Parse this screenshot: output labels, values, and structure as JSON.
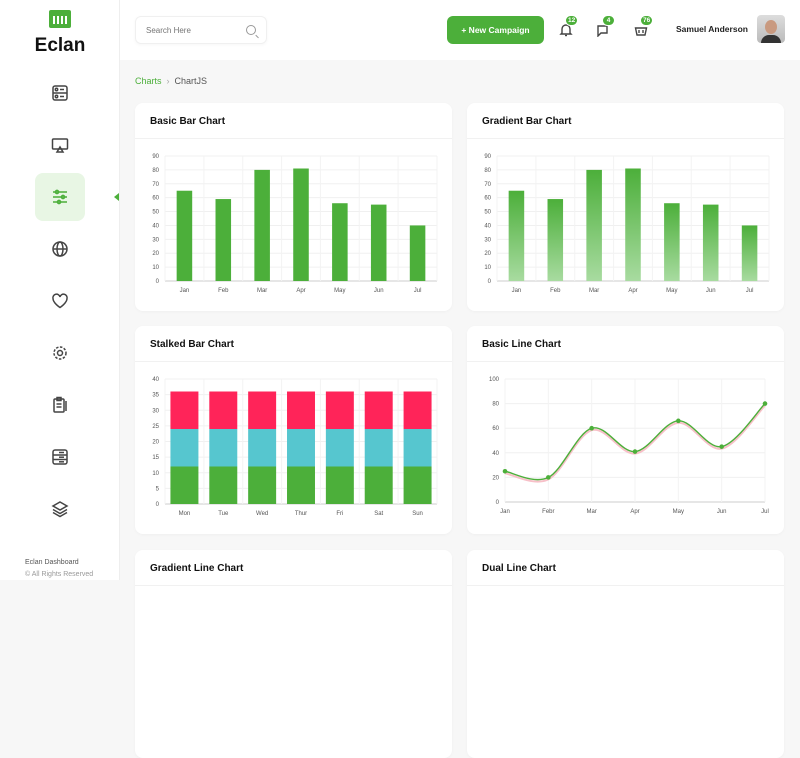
{
  "app": {
    "name": "Eclan",
    "footer_title": "Eclan Dashboard",
    "footer_sub": "© All Rights Reserved"
  },
  "sidebar": {
    "items": [
      {
        "icon": "dashboard-icon"
      },
      {
        "icon": "monitor-icon"
      },
      {
        "icon": "sliders-icon",
        "active": true
      },
      {
        "icon": "globe-icon"
      },
      {
        "icon": "heart-icon"
      },
      {
        "icon": "gear-icon"
      },
      {
        "icon": "clipboard-icon"
      },
      {
        "icon": "list-icon"
      },
      {
        "icon": "layers-icon"
      }
    ]
  },
  "header": {
    "search_placeholder": "Search Here",
    "new_campaign": "+ New Campaign",
    "notifications": "12",
    "messages": "4",
    "cart": "76",
    "user": "Samuel Anderson"
  },
  "breadcrumb": {
    "parent": "Charts",
    "current": "ChartJS"
  },
  "colors": {
    "green": "#4caf3a",
    "teal": "#56c6cf",
    "red": "#ff2459",
    "pink": "#f7c0c8"
  },
  "cards": {
    "basic_bar": "Basic Bar Chart",
    "gradient_bar": "Gradient Bar Chart",
    "stacked_bar": "Stalked Bar Chart",
    "basic_line": "Basic Line Chart",
    "gradient_line": "Gradient Line Chart",
    "dual_line": "Dual Line Chart"
  },
  "chart_data": [
    {
      "id": "basic_bar",
      "type": "bar",
      "categories": [
        "Jan",
        "Feb",
        "Mar",
        "Apr",
        "May",
        "Jun",
        "Jul"
      ],
      "values": [
        65,
        59,
        80,
        81,
        56,
        55,
        40
      ],
      "ylim": [
        0,
        90
      ],
      "yticks": [
        0,
        10,
        20,
        30,
        40,
        50,
        60,
        70,
        80,
        90
      ]
    },
    {
      "id": "gradient_bar",
      "type": "bar",
      "categories": [
        "Jan",
        "Feb",
        "Mar",
        "Apr",
        "May",
        "Jun",
        "Jul"
      ],
      "values": [
        65,
        59,
        80,
        81,
        56,
        55,
        40
      ],
      "ylim": [
        0,
        90
      ],
      "yticks": [
        0,
        10,
        20,
        30,
        40,
        50,
        60,
        70,
        80,
        90
      ]
    },
    {
      "id": "stacked_bar",
      "type": "bar",
      "stacked": true,
      "categories": [
        "Mon",
        "Tue",
        "Wed",
        "Thur",
        "Fri",
        "Sat",
        "Sun"
      ],
      "series": [
        {
          "values": [
            12,
            12,
            12,
            12,
            12,
            12,
            12
          ]
        },
        {
          "values": [
            12,
            12,
            12,
            12,
            12,
            12,
            12
          ]
        },
        {
          "values": [
            12,
            12,
            12,
            12,
            12,
            12,
            12
          ]
        }
      ],
      "ylim": [
        0,
        40
      ],
      "yticks": [
        0,
        5,
        10,
        15,
        20,
        25,
        30,
        35,
        40
      ]
    },
    {
      "id": "basic_line",
      "type": "line",
      "categories": [
        "Jan",
        "Febr",
        "Mar",
        "Apr",
        "May",
        "Jun",
        "Jul"
      ],
      "values": [
        25,
        20,
        60,
        41,
        66,
        45,
        80
      ],
      "ylim": [
        0,
        100
      ],
      "yticks": [
        0,
        20,
        40,
        60,
        80,
        100
      ]
    }
  ]
}
